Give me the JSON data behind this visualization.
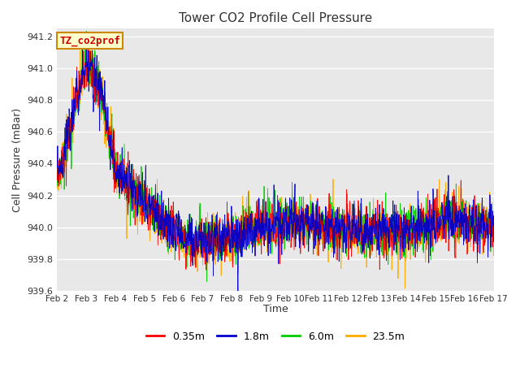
{
  "title": "Tower CO2 Profile Cell Pressure",
  "ylabel": "Cell Pressure (mBar)",
  "xlabel": "Time",
  "annotation_text": "TZ_co2prof",
  "annotation_bg": "#ffffcc",
  "annotation_border": "#cc8800",
  "annotation_text_color": "#cc0000",
  "ylim": [
    939.6,
    941.25
  ],
  "legend_labels": [
    "0.35m",
    "1.8m",
    "6.0m",
    "23.5m"
  ],
  "legend_colors": [
    "#ff0000",
    "#0000cc",
    "#00cc00",
    "#ffaa00"
  ],
  "plot_bg": "#e8e8e8",
  "fig_bg": "#ffffff",
  "n_days": 15,
  "start_day": 2,
  "samples_per_day": 144,
  "seed": 7,
  "noise_scale": 0.09,
  "spike_scale": 0.15
}
